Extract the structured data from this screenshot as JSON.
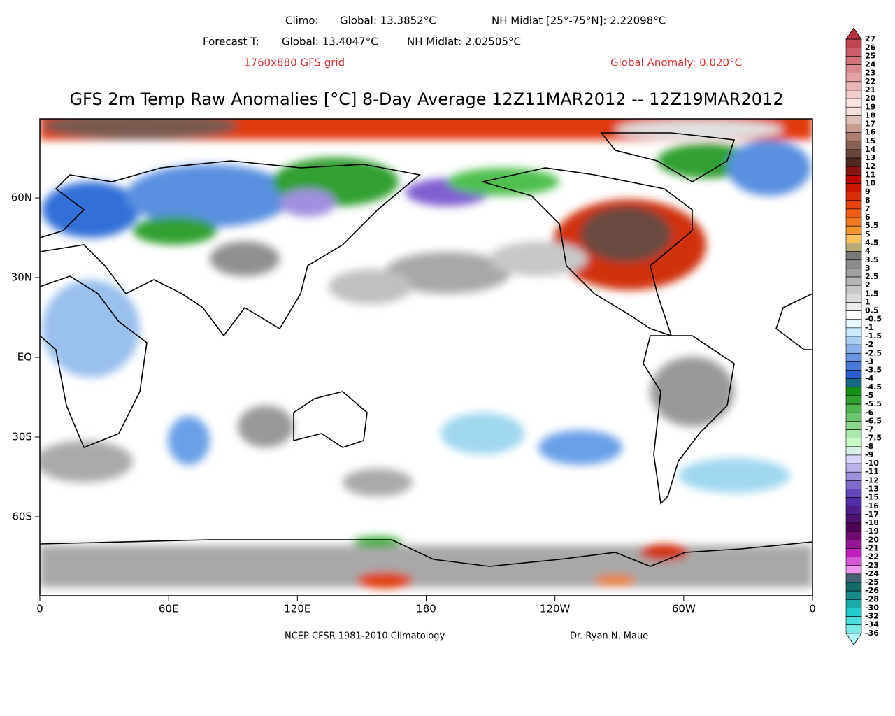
{
  "header": {
    "climo_label": "Climo:",
    "climo_global": "Global: 13.3852°C",
    "climo_nh": "NH Midlat [25°-75°N]: 2.22098°C",
    "forecast_label": "Forecast T:",
    "forecast_global": "Global: 13.4047°C",
    "forecast_nh": "NH Midlat: 2.02505°C",
    "grid": "1760x880 GFS grid",
    "anomaly": "Global Anomaly: 0.020°C"
  },
  "title": "GFS 2m Temp Raw Anomalies [°C] 8-Day Average 12Z11MAR2012 -- 12Z19MAR2012",
  "map": {
    "lon_labels": [
      "0",
      "60E",
      "120E",
      "180",
      "120W",
      "60W",
      "0"
    ],
    "lat_labels": [
      "60N",
      "30N",
      "EQ",
      "30S",
      "60S"
    ]
  },
  "footer": {
    "source": "NCEP CFSR 1981-2010 Climatology",
    "author": "Dr. Ryan N. Maue"
  },
  "colorbar": {
    "labels": [
      "27",
      "26",
      "25",
      "24",
      "23",
      "22",
      "21",
      "20",
      "19",
      "18",
      "17",
      "16",
      "15",
      "14",
      "13",
      "12",
      "11",
      "10",
      "9",
      "8",
      "7",
      "6",
      "5.5",
      "5",
      "4.5",
      "4",
      "3.5",
      "3",
      "2.5",
      "2",
      "1.5",
      "1",
      "0.5",
      "-0.5",
      "-1",
      "-1.5",
      "-2",
      "-2.5",
      "-3",
      "-3.5",
      "-4",
      "-4.5",
      "-5",
      "-5.5",
      "-6",
      "-6.5",
      "-7",
      "-7.5",
      "-8",
      "-9",
      "-10",
      "-11",
      "-12",
      "-13",
      "-15",
      "-16",
      "-17",
      "-18",
      "-19",
      "-20",
      "-21",
      "-22",
      "-23",
      "-24",
      "-25",
      "-26",
      "-28",
      "-30",
      "-32",
      "-34",
      "-36"
    ]
  }
}
